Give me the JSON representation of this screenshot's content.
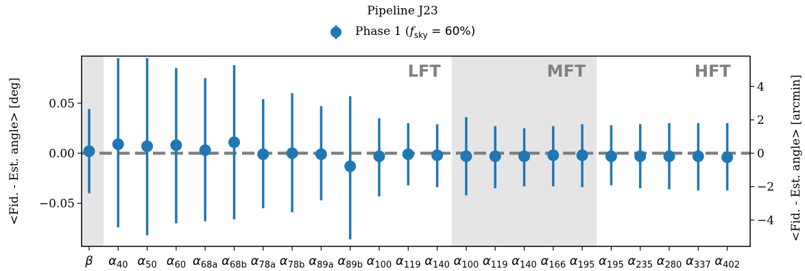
{
  "chart_data": {
    "type": "scatter",
    "title": "Pipeline J23",
    "ylabel_left": "<Fid. - Est. angle> [deg]",
    "ylabel_right": "<Fid. - Est. angle> [arcmin]",
    "ylim": [
      -0.093,
      0.097
    ],
    "yticks_left": [
      -0.05,
      0.0,
      0.05
    ],
    "yticks_left_labels": [
      "−0.05",
      "0.00",
      "0.05"
    ],
    "ylim_right_arcmin": [
      -5.58,
      5.82
    ],
    "yticks_right": [
      -4,
      -2,
      0,
      2,
      4
    ],
    "yticks_right_labels": [
      "−4",
      "−2",
      "0",
      "2",
      "4"
    ],
    "reference_line": 0.0,
    "series": [
      {
        "name": "Phase 1 (f_sky = 60%)",
        "color": "#1f77b4",
        "categories": [
          {
            "sym": "β",
            "sub": ""
          },
          {
            "sym": "α",
            "sub": "40"
          },
          {
            "sym": "α",
            "sub": "50"
          },
          {
            "sym": "α",
            "sub": "60"
          },
          {
            "sym": "α",
            "sub": "68a"
          },
          {
            "sym": "α",
            "sub": "68b"
          },
          {
            "sym": "α",
            "sub": "78a"
          },
          {
            "sym": "α",
            "sub": "78b"
          },
          {
            "sym": "α",
            "sub": "89a"
          },
          {
            "sym": "α",
            "sub": "89b"
          },
          {
            "sym": "α",
            "sub": "100"
          },
          {
            "sym": "α",
            "sub": "119"
          },
          {
            "sym": "α",
            "sub": "140"
          },
          {
            "sym": "α",
            "sub": "100"
          },
          {
            "sym": "α",
            "sub": "119"
          },
          {
            "sym": "α",
            "sub": "140"
          },
          {
            "sym": "α",
            "sub": "166"
          },
          {
            "sym": "α",
            "sub": "195"
          },
          {
            "sym": "α",
            "sub": "195"
          },
          {
            "sym": "α",
            "sub": "235"
          },
          {
            "sym": "α",
            "sub": "280"
          },
          {
            "sym": "α",
            "sub": "337"
          },
          {
            "sym": "α",
            "sub": "402"
          }
        ],
        "values": [
          0.002,
          0.009,
          0.007,
          0.008,
          0.003,
          0.011,
          -0.001,
          0.0,
          -0.001,
          -0.013,
          -0.003,
          -0.001,
          -0.002,
          -0.003,
          -0.003,
          -0.003,
          -0.002,
          -0.002,
          -0.003,
          -0.003,
          -0.003,
          -0.003,
          -0.004
        ],
        "lower": [
          -0.04,
          -0.074,
          -0.082,
          -0.07,
          -0.068,
          -0.066,
          -0.055,
          -0.059,
          -0.047,
          -0.086,
          -0.043,
          -0.032,
          -0.034,
          -0.042,
          -0.035,
          -0.033,
          -0.033,
          -0.034,
          -0.032,
          -0.035,
          -0.036,
          -0.037,
          -0.037
        ],
        "upper": [
          0.044,
          0.095,
          0.095,
          0.085,
          0.075,
          0.088,
          0.054,
          0.06,
          0.047,
          0.057,
          0.035,
          0.03,
          0.029,
          0.036,
          0.027,
          0.025,
          0.027,
          0.029,
          0.028,
          0.029,
          0.03,
          0.03,
          0.03
        ]
      }
    ],
    "bands": [
      {
        "label": "",
        "from_index": -0.5,
        "to_index": 0.5,
        "shaded": true
      },
      {
        "label": "LFT",
        "from_index": 0.5,
        "to_index": 12.5,
        "shaded": false
      },
      {
        "label": "MFT",
        "from_index": 12.5,
        "to_index": 17.5,
        "shaded": true
      },
      {
        "label": "HFT",
        "from_index": 17.5,
        "to_index": 22.5,
        "shaded": false
      }
    ],
    "legend_position": "top-center",
    "grid": false
  },
  "legend": {
    "title": "Pipeline J23",
    "entry_prefix": "Phase 1 (",
    "entry_f": "f",
    "entry_sub": "sky",
    "entry_suffix": " = 60%)"
  }
}
